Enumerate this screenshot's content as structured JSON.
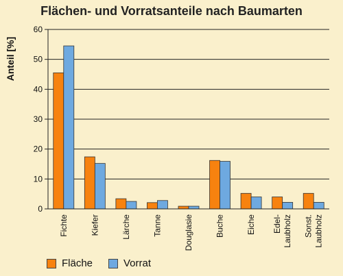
{
  "chart_data": {
    "type": "bar",
    "title": "Flächen- und Vorratsanteile nach Baumarten",
    "ylabel": "Anteil [%]",
    "xlabel": "",
    "ylim": [
      0,
      60
    ],
    "yticks": [
      0,
      10,
      20,
      30,
      40,
      50,
      60
    ],
    "grid": true,
    "legend_position": "bottom-left",
    "categories": [
      [
        "Fichte"
      ],
      [
        "Kiefer"
      ],
      [
        "Lärche"
      ],
      [
        "Tanne"
      ],
      [
        "Douglasie"
      ],
      [
        "Buche"
      ],
      [
        "Eiche"
      ],
      [
        "Edel-",
        "Laubholz"
      ],
      [
        "Sonst.",
        "Laubholz"
      ]
    ],
    "series": [
      {
        "name": "Fläche",
        "color": "#f7820f",
        "values": [
          45.5,
          17.4,
          3.4,
          2.1,
          0.9,
          16.2,
          5.2,
          4.0,
          5.2
        ]
      },
      {
        "name": "Vorrat",
        "color": "#6ea9e0",
        "values": [
          54.5,
          15.2,
          2.5,
          2.8,
          0.9,
          15.9,
          4.0,
          2.2,
          2.2
        ]
      }
    ]
  }
}
